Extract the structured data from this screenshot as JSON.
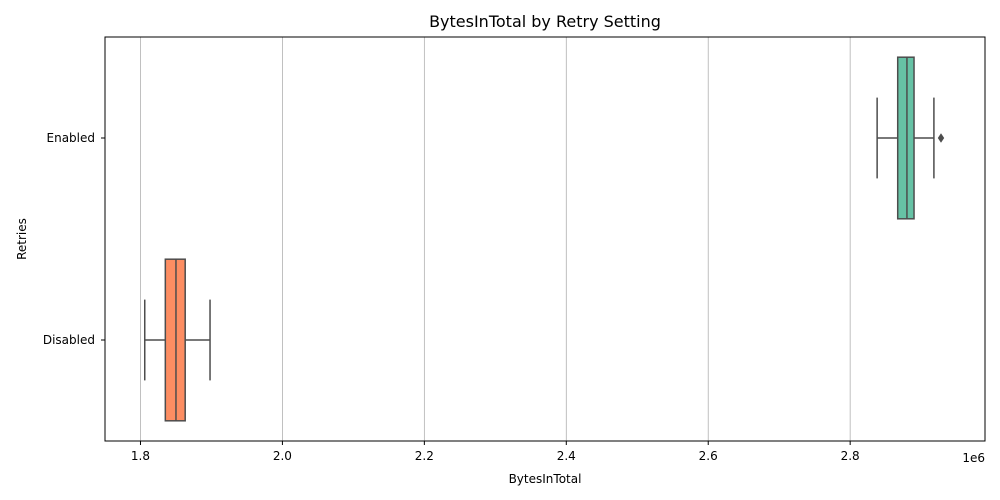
{
  "chart_data": {
    "type": "box",
    "title": "BytesInTotal by Retry Setting",
    "xlabel": "BytesInTotal",
    "ylabel": "Retries",
    "x_offset_label": "1e6",
    "xlim": [
      1.75,
      2.99
    ],
    "x_ticks": [
      1.8,
      2.0,
      2.2,
      2.4,
      2.6,
      2.8
    ],
    "x_tick_labels": [
      "1.8",
      "2.0",
      "2.2",
      "2.4",
      "2.6",
      "2.8"
    ],
    "grid": "x-axis",
    "categories": [
      "Enabled",
      "Disabled"
    ],
    "boxes": [
      {
        "category": "Enabled",
        "whisker_low": 2.838,
        "q1": 2.867,
        "median": 2.88,
        "q3": 2.89,
        "whisker_high": 2.918,
        "fliers": [
          2.928
        ],
        "color": "#66c2a5"
      },
      {
        "category": "Disabled",
        "whisker_low": 1.806,
        "q1": 1.835,
        "median": 1.85,
        "q3": 1.863,
        "whisker_high": 1.898,
        "fliers": [],
        "color": "#fc8d62"
      }
    ]
  }
}
